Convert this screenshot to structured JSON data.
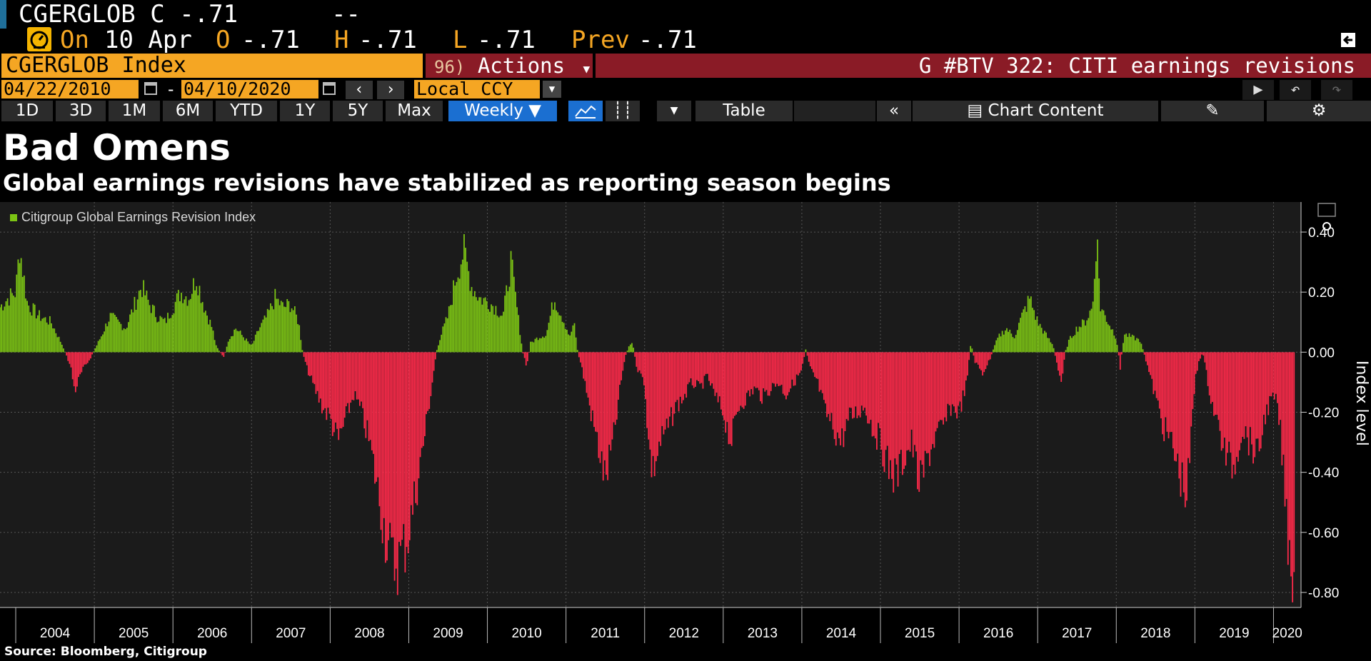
{
  "header": {
    "ticker": "CGERGLOB",
    "last_label": "C",
    "last_value": "-.71",
    "change": "--"
  },
  "quote": {
    "on_label": "On",
    "date": "10 Apr",
    "open_label": "O",
    "open_value": "-.71",
    "high_label": "H",
    "high_value": "-.71",
    "low_label": "L",
    "low_value": "-.71",
    "prev_label": "Prev",
    "prev_value": "-.71"
  },
  "title_bar": {
    "security": "CGERGLOB Index",
    "actions_number": "96)",
    "actions_label": "Actions",
    "news": "G #BTV 322: CITI earnings revisions"
  },
  "date_controls": {
    "start_date": "04/22/2010",
    "separator": "-",
    "end_date": "04/10/2020",
    "currency": "Local CCY"
  },
  "tabs": {
    "ranges": [
      "1D",
      "3D",
      "1M",
      "6M",
      "YTD",
      "1Y",
      "5Y",
      "Max"
    ],
    "frequency": "Weekly ▼",
    "table": "Table",
    "chart_content": "Chart Content"
  },
  "heading": "Bad Omens",
  "subheading": "Global earnings revisions have stabilized as reporting season begins",
  "source": "Source: Bloomberg, Citigroup",
  "colors": {
    "positive": "#7cc414",
    "negative": "#ff2a4a",
    "accent": "#f5a623",
    "plot_bg": "#1b1b1b"
  },
  "chart_data": {
    "type": "bar",
    "title": "Bad Omens",
    "subtitle": "Global earnings revisions have stabilized as reporting season begins",
    "legend": [
      "Citigroup Global Earnings Revision Index"
    ],
    "legend_position": "top-left",
    "ylabel": "Index level",
    "ylim": [
      -0.85,
      0.5
    ],
    "yticks": [
      0.4,
      0.2,
      0.0,
      -0.2,
      -0.4,
      -0.6,
      -0.8
    ],
    "ytick_labels": [
      "0.40",
      "0.20",
      "0.00",
      "-0.20",
      "-0.40",
      "-0.60",
      "-0.80"
    ],
    "xlim": [
      2003.8,
      2020.35
    ],
    "xtick_labels": [
      "2004",
      "2005",
      "2006",
      "2007",
      "2008",
      "2009",
      "2010",
      "2011",
      "2012",
      "2013",
      "2014",
      "2015",
      "2016",
      "2017",
      "2018",
      "2019",
      "2020"
    ],
    "grid": true,
    "key_points": [
      [
        2003.8,
        0.15
      ],
      [
        2003.9,
        0.18
      ],
      [
        2004.0,
        0.2
      ],
      [
        2004.05,
        0.35
      ],
      [
        2004.15,
        0.16
      ],
      [
        2004.3,
        0.12
      ],
      [
        2004.45,
        0.1
      ],
      [
        2004.6,
        0.02
      ],
      [
        2004.7,
        -0.05
      ],
      [
        2004.75,
        -0.13
      ],
      [
        2004.85,
        -0.06
      ],
      [
        2004.95,
        -0.02
      ],
      [
        2005.1,
        0.06
      ],
      [
        2005.2,
        0.12
      ],
      [
        2005.3,
        0.1
      ],
      [
        2005.4,
        0.08
      ],
      [
        2005.5,
        0.15
      ],
      [
        2005.6,
        0.22
      ],
      [
        2005.7,
        0.16
      ],
      [
        2005.8,
        0.12
      ],
      [
        2005.9,
        0.1
      ],
      [
        2006.0,
        0.15
      ],
      [
        2006.1,
        0.2
      ],
      [
        2006.2,
        0.18
      ],
      [
        2006.3,
        0.25
      ],
      [
        2006.4,
        0.15
      ],
      [
        2006.5,
        0.08
      ],
      [
        2006.55,
        0.02
      ],
      [
        2006.65,
        -0.02
      ],
      [
        2006.7,
        0.04
      ],
      [
        2006.8,
        0.08
      ],
      [
        2006.9,
        0.05
      ],
      [
        2007.0,
        0.02
      ],
      [
        2007.1,
        0.08
      ],
      [
        2007.2,
        0.12
      ],
      [
        2007.3,
        0.18
      ],
      [
        2007.4,
        0.15
      ],
      [
        2007.5,
        0.16
      ],
      [
        2007.6,
        0.1
      ],
      [
        2007.65,
        0.0
      ],
      [
        2007.7,
        -0.05
      ],
      [
        2007.8,
        -0.12
      ],
      [
        2007.9,
        -0.18
      ],
      [
        2008.0,
        -0.22
      ],
      [
        2008.1,
        -0.3
      ],
      [
        2008.2,
        -0.22
      ],
      [
        2008.3,
        -0.14
      ],
      [
        2008.4,
        -0.2
      ],
      [
        2008.5,
        -0.3
      ],
      [
        2008.6,
        -0.45
      ],
      [
        2008.7,
        -0.6
      ],
      [
        2008.8,
        -0.71
      ],
      [
        2008.9,
        -0.68
      ],
      [
        2009.0,
        -0.6
      ],
      [
        2009.1,
        -0.45
      ],
      [
        2009.2,
        -0.28
      ],
      [
        2009.3,
        -0.1
      ],
      [
        2009.35,
        0.0
      ],
      [
        2009.4,
        0.05
      ],
      [
        2009.5,
        0.12
      ],
      [
        2009.6,
        0.25
      ],
      [
        2009.7,
        0.34
      ],
      [
        2009.8,
        0.22
      ],
      [
        2009.9,
        0.18
      ],
      [
        2010.0,
        0.17
      ],
      [
        2010.1,
        0.15
      ],
      [
        2010.2,
        0.12
      ],
      [
        2010.3,
        0.3
      ],
      [
        2010.4,
        0.1
      ],
      [
        2010.45,
        0.0
      ],
      [
        2010.5,
        -0.05
      ],
      [
        2010.55,
        0.03
      ],
      [
        2010.65,
        0.05
      ],
      [
        2010.75,
        0.06
      ],
      [
        2010.85,
        0.18
      ],
      [
        2010.95,
        0.12
      ],
      [
        2011.05,
        0.05
      ],
      [
        2011.1,
        0.1
      ],
      [
        2011.15,
        0.0
      ],
      [
        2011.2,
        -0.05
      ],
      [
        2011.3,
        -0.18
      ],
      [
        2011.4,
        -0.3
      ],
      [
        2011.5,
        -0.43
      ],
      [
        2011.6,
        -0.3
      ],
      [
        2011.7,
        -0.1
      ],
      [
        2011.75,
        -0.02
      ],
      [
        2011.8,
        0.02
      ],
      [
        2011.85,
        0.03
      ],
      [
        2011.9,
        -0.05
      ],
      [
        2012.0,
        -0.1
      ],
      [
        2012.05,
        -0.3
      ],
      [
        2012.1,
        -0.4
      ],
      [
        2012.2,
        -0.3
      ],
      [
        2012.3,
        -0.25
      ],
      [
        2012.4,
        -0.18
      ],
      [
        2012.5,
        -0.15
      ],
      [
        2012.6,
        -0.1
      ],
      [
        2012.7,
        -0.12
      ],
      [
        2012.8,
        -0.08
      ],
      [
        2012.9,
        -0.15
      ],
      [
        2013.0,
        -0.2
      ],
      [
        2013.1,
        -0.3
      ],
      [
        2013.2,
        -0.18
      ],
      [
        2013.3,
        -0.15
      ],
      [
        2013.4,
        -0.12
      ],
      [
        2013.5,
        -0.15
      ],
      [
        2013.6,
        -0.12
      ],
      [
        2013.7,
        -0.1
      ],
      [
        2013.8,
        -0.14
      ],
      [
        2013.9,
        -0.1
      ],
      [
        2014.0,
        -0.06
      ],
      [
        2014.05,
        0.01
      ],
      [
        2014.1,
        -0.05
      ],
      [
        2014.2,
        -0.1
      ],
      [
        2014.3,
        -0.2
      ],
      [
        2014.4,
        -0.25
      ],
      [
        2014.5,
        -0.3
      ],
      [
        2014.6,
        -0.22
      ],
      [
        2014.7,
        -0.2
      ],
      [
        2014.8,
        -0.18
      ],
      [
        2014.9,
        -0.25
      ],
      [
        2015.0,
        -0.3
      ],
      [
        2015.1,
        -0.38
      ],
      [
        2015.2,
        -0.42
      ],
      [
        2015.3,
        -0.35
      ],
      [
        2015.4,
        -0.3
      ],
      [
        2015.5,
        -0.45
      ],
      [
        2015.6,
        -0.35
      ],
      [
        2015.7,
        -0.28
      ],
      [
        2015.8,
        -0.25
      ],
      [
        2015.9,
        -0.18
      ],
      [
        2016.0,
        -0.2
      ],
      [
        2016.1,
        -0.1
      ],
      [
        2016.15,
        0.03
      ],
      [
        2016.2,
        -0.03
      ],
      [
        2016.3,
        -0.07
      ],
      [
        2016.4,
        -0.02
      ],
      [
        2016.45,
        0.02
      ],
      [
        2016.5,
        0.05
      ],
      [
        2016.6,
        0.08
      ],
      [
        2016.7,
        0.05
      ],
      [
        2016.8,
        0.12
      ],
      [
        2016.9,
        0.18
      ],
      [
        2017.0,
        0.1
      ],
      [
        2017.1,
        0.06
      ],
      [
        2017.2,
        0.02
      ],
      [
        2017.25,
        -0.05
      ],
      [
        2017.3,
        -0.1
      ],
      [
        2017.35,
        0.0
      ],
      [
        2017.4,
        0.04
      ],
      [
        2017.5,
        0.08
      ],
      [
        2017.6,
        0.1
      ],
      [
        2017.7,
        0.15
      ],
      [
        2017.75,
        0.4
      ],
      [
        2017.8,
        0.15
      ],
      [
        2017.9,
        0.1
      ],
      [
        2018.0,
        0.05
      ],
      [
        2018.05,
        -0.05
      ],
      [
        2018.1,
        0.06
      ],
      [
        2018.2,
        0.05
      ],
      [
        2018.3,
        0.04
      ],
      [
        2018.35,
        0.0
      ],
      [
        2018.4,
        -0.05
      ],
      [
        2018.5,
        -0.15
      ],
      [
        2018.6,
        -0.25
      ],
      [
        2018.7,
        -0.3
      ],
      [
        2018.8,
        -0.4
      ],
      [
        2018.9,
        -0.48
      ],
      [
        2018.95,
        -0.3
      ],
      [
        2019.0,
        -0.1
      ],
      [
        2019.05,
        -0.03
      ],
      [
        2019.1,
        0.0
      ],
      [
        2019.2,
        -0.15
      ],
      [
        2019.3,
        -0.25
      ],
      [
        2019.4,
        -0.35
      ],
      [
        2019.5,
        -0.38
      ],
      [
        2019.6,
        -0.25
      ],
      [
        2019.7,
        -0.3
      ],
      [
        2019.8,
        -0.35
      ],
      [
        2019.9,
        -0.2
      ],
      [
        2020.0,
        -0.15
      ],
      [
        2020.05,
        -0.18
      ],
      [
        2020.1,
        -0.3
      ],
      [
        2020.15,
        -0.5
      ],
      [
        2020.2,
        -0.65
      ],
      [
        2020.25,
        -0.74
      ],
      [
        2020.27,
        -0.71
      ]
    ]
  }
}
